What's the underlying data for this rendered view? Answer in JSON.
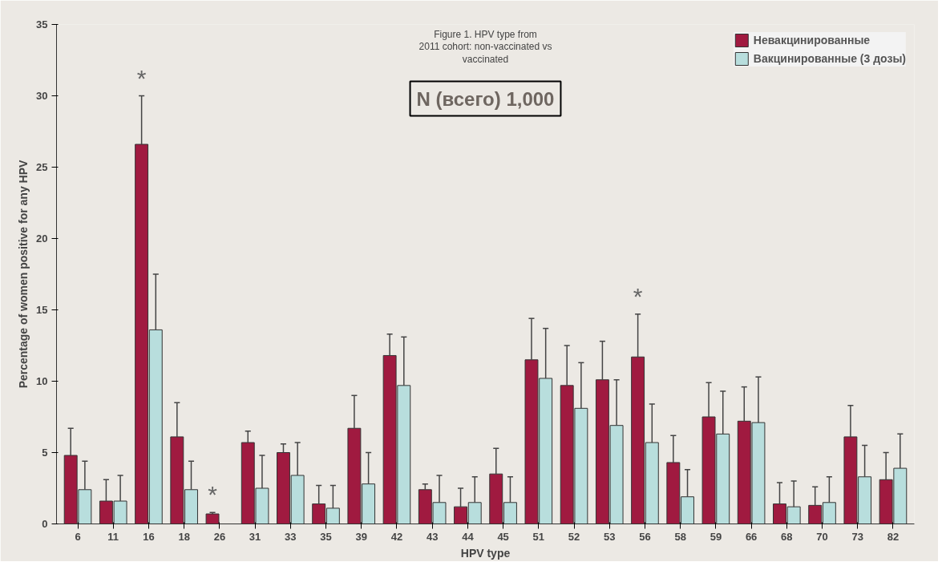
{
  "chart_data": {
    "type": "bar",
    "title": "N (всего) 1,000",
    "annotations": [
      "Figure 1. HPV type from",
      "2011 cohort: non-vaccinated vs",
      "vaccinated",
      {
        "text": "*",
        "x": "16",
        "y": 26.6
      },
      {
        "text": "*",
        "x": "26",
        "y": 0.7
      },
      {
        "text": "*",
        "x": "56",
        "y": 11.7
      }
    ],
    "xlabel": "HPV type",
    "ylabel": "Percentage of women positive for any HPV",
    "categories": [
      "6",
      "11",
      "16",
      "18",
      "26",
      "31",
      "33",
      "35",
      "39",
      "42",
      "43",
      "44",
      "45",
      "51",
      "52",
      "53",
      "56",
      "58",
      "59",
      "66",
      "68",
      "70",
      "73",
      "82"
    ],
    "series": [
      {
        "name": "Невакцинированные",
        "color": "#a01a40",
        "values": [
          4.8,
          1.6,
          26.6,
          6.1,
          0.7,
          5.7,
          5.0,
          1.4,
          6.7,
          11.8,
          2.4,
          1.2,
          3.5,
          11.5,
          9.7,
          10.1,
          11.7,
          4.3,
          7.5,
          7.2,
          1.4,
          1.3,
          6.1,
          3.1
        ],
        "errors": [
          [
            4.8,
            6.7
          ],
          [
            1.6,
            3.1
          ],
          [
            26.6,
            30.0
          ],
          [
            6.1,
            8.5
          ],
          [
            0.7,
            0.8
          ],
          [
            5.7,
            6.5
          ],
          [
            5.0,
            5.6
          ],
          [
            1.4,
            2.7
          ],
          [
            6.7,
            9.0
          ],
          [
            11.8,
            13.3
          ],
          [
            2.4,
            2.8
          ],
          [
            1.2,
            2.5
          ],
          [
            3.5,
            5.3
          ],
          [
            11.5,
            14.4
          ],
          [
            9.7,
            12.5
          ],
          [
            10.1,
            12.8
          ],
          [
            11.7,
            14.7
          ],
          [
            4.3,
            6.2
          ],
          [
            7.5,
            9.9
          ],
          [
            7.2,
            9.6
          ],
          [
            1.4,
            2.9
          ],
          [
            1.3,
            2.6
          ],
          [
            6.1,
            8.3
          ],
          [
            3.1,
            5.0
          ]
        ]
      },
      {
        "name": "Вакцинированные (3 дозы)",
        "color": "#b8dedd",
        "values": [
          2.4,
          1.6,
          13.6,
          2.4,
          null,
          2.5,
          3.4,
          1.1,
          2.8,
          9.7,
          1.5,
          1.5,
          1.5,
          10.2,
          8.1,
          6.9,
          5.7,
          1.9,
          6.3,
          7.1,
          1.2,
          1.5,
          3.3,
          3.9
        ],
        "errors": [
          [
            2.4,
            4.4
          ],
          [
            1.6,
            3.4
          ],
          [
            13.6,
            17.5
          ],
          [
            2.4,
            4.4
          ],
          null,
          [
            2.5,
            4.8
          ],
          [
            3.4,
            5.7
          ],
          [
            1.1,
            2.7
          ],
          [
            2.8,
            5.0
          ],
          [
            9.7,
            13.1
          ],
          [
            1.5,
            3.4
          ],
          [
            1.5,
            3.3
          ],
          [
            1.5,
            3.3
          ],
          [
            10.2,
            13.7
          ],
          [
            8.1,
            11.3
          ],
          [
            6.9,
            10.1
          ],
          [
            5.7,
            8.4
          ],
          [
            1.9,
            3.8
          ],
          [
            6.3,
            9.3
          ],
          [
            7.1,
            10.3
          ],
          [
            1.2,
            3.0
          ],
          [
            1.5,
            3.3
          ],
          [
            3.3,
            5.5
          ],
          [
            3.9,
            6.3
          ]
        ]
      }
    ],
    "ylim": [
      0,
      35
    ],
    "yticks": [
      0,
      5,
      10,
      15,
      20,
      25,
      30,
      35
    ],
    "grid": false,
    "legend": "top right"
  }
}
